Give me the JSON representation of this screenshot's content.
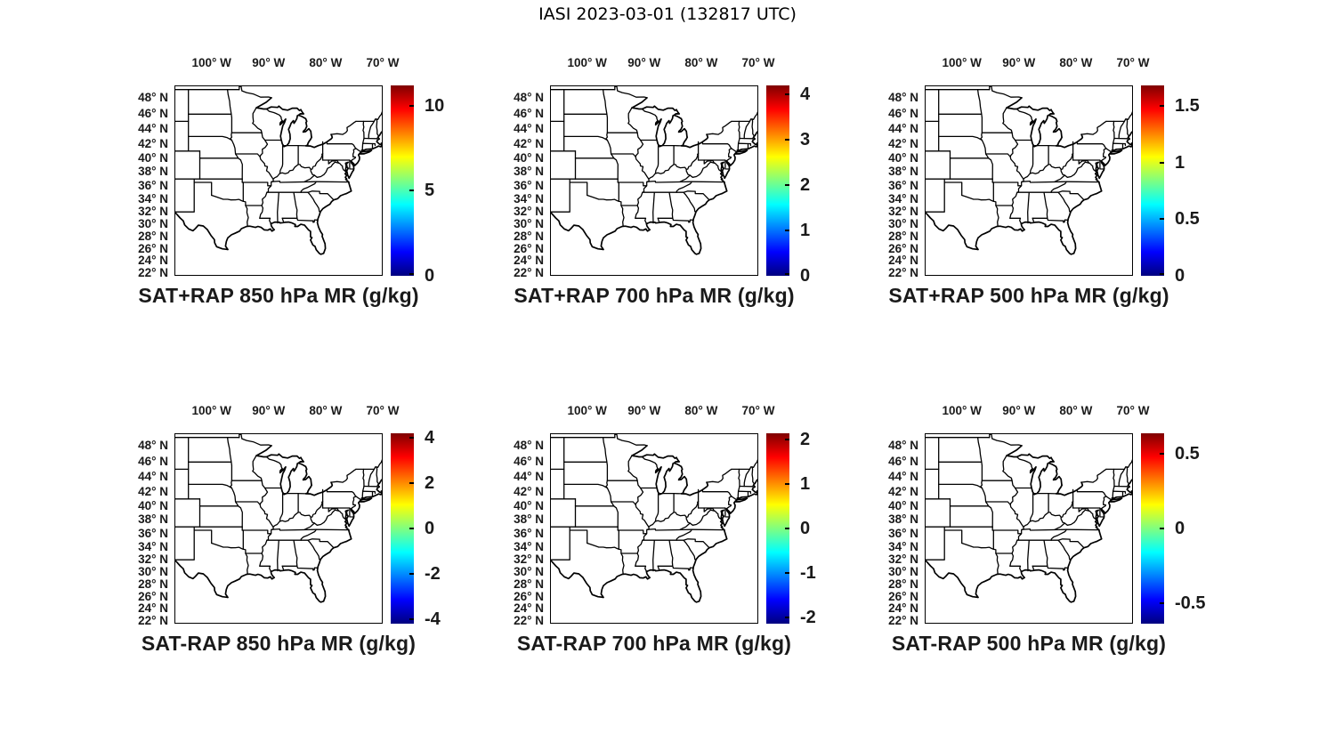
{
  "figure_title": "IASI 2023-03-01 (132817 UTC)",
  "axes": {
    "lon_tick_labels": [
      "100° W",
      "90° W",
      "80° W",
      "70° W"
    ],
    "lon_tick_values": [
      -100,
      -90,
      -80,
      -70
    ],
    "lat_tick_labels": [
      "48° N",
      "46° N",
      "44° N",
      "42° N",
      "40° N",
      "38° N",
      "36° N",
      "34° N",
      "32° N",
      "30° N",
      "28° N",
      "26° N",
      "24° N",
      "22° N"
    ],
    "lat_tick_values": [
      48,
      46,
      44,
      42,
      40,
      38,
      36,
      34,
      32,
      30,
      28,
      26,
      24,
      22
    ]
  },
  "colors": {
    "map_line": "#000000",
    "label_text": "#1a1a1a",
    "background": "#ffffff",
    "jet_stops": [
      "#7f0000",
      "#ff0000",
      "#ffff00",
      "#00ffff",
      "#0000ff",
      "#00007f"
    ]
  },
  "panels": [
    {
      "title": "SAT+RAP 850 hPa MR (g/kg)",
      "colorbar": {
        "tick_labels": [
          "0",
          "5",
          "10"
        ],
        "tick_values": [
          0,
          5,
          10
        ],
        "range": [
          0,
          11.2
        ]
      }
    },
    {
      "title": "SAT+RAP 700 hPa MR (g/kg)",
      "colorbar": {
        "tick_labels": [
          "0",
          "1",
          "2",
          "3",
          "4"
        ],
        "tick_values": [
          0,
          1,
          2,
          3,
          4
        ],
        "range": [
          0,
          4.2
        ]
      }
    },
    {
      "title": "SAT+RAP 500 hPa MR (g/kg)",
      "colorbar": {
        "tick_labels": [
          "0",
          "0.5",
          "1",
          "1.5"
        ],
        "tick_values": [
          0,
          0.5,
          1,
          1.5
        ],
        "range": [
          0,
          1.68
        ]
      }
    },
    {
      "title": "SAT-RAP 850 hPa MR (g/kg)",
      "colorbar": {
        "tick_labels": [
          "-4",
          "-2",
          "0",
          "2",
          "4"
        ],
        "tick_values": [
          -4,
          -2,
          0,
          2,
          4
        ],
        "range": [
          -4.2,
          4.2
        ]
      }
    },
    {
      "title": "SAT-RAP 700 hPa MR (g/kg)",
      "colorbar": {
        "tick_labels": [
          "-2",
          "-1",
          "0",
          "1",
          "2"
        ],
        "tick_values": [
          -2,
          -1,
          0,
          1,
          2
        ],
        "range": [
          -2.15,
          2.15
        ]
      }
    },
    {
      "title": "SAT-RAP 500 hPa MR (g/kg)",
      "colorbar": {
        "tick_labels": [
          "-0.5",
          "0",
          "0.5"
        ],
        "tick_values": [
          -0.5,
          0,
          0.5
        ],
        "range": [
          -0.64,
          0.64
        ]
      }
    }
  ],
  "chart_data": {
    "type": "heatmap",
    "subtype": "geographic-map-grid",
    "figure_title": "IASI 2023-03-01 (132817 UTC)",
    "layout": {
      "rows": 2,
      "cols": 3,
      "legend_position": "right-colorbar-per-panel",
      "grid": "off"
    },
    "projection": "Mercator",
    "map_region": "Central and Eastern United States with state boundaries",
    "lon_extent_deg_west": [
      106.5,
      70.0
    ],
    "lat_extent_deg_north": [
      21.5,
      49.5
    ],
    "lon_ticks_deg_west": [
      100,
      90,
      80,
      70
    ],
    "lat_ticks_deg_north": [
      48,
      46,
      44,
      42,
      40,
      38,
      36,
      34,
      32,
      30,
      28,
      26,
      24,
      22
    ],
    "colormap": "jet",
    "panels": [
      {
        "title": "SAT+RAP 850 hPa MR (g/kg)",
        "colorbar_ticks": [
          0,
          5,
          10
        ],
        "colorbar_range": [
          0,
          11.2
        ],
        "field_overlay": "none visible (state outlines only)"
      },
      {
        "title": "SAT+RAP 700 hPa MR (g/kg)",
        "colorbar_ticks": [
          0,
          1,
          2,
          3,
          4
        ],
        "colorbar_range": [
          0,
          4.2
        ],
        "field_overlay": "none visible (state outlines only)"
      },
      {
        "title": "SAT+RAP 500 hPa MR (g/kg)",
        "colorbar_ticks": [
          0,
          0.5,
          1,
          1.5
        ],
        "colorbar_range": [
          0,
          1.68
        ],
        "field_overlay": "none visible (state outlines only)"
      },
      {
        "title": "SAT-RAP 850 hPa MR (g/kg)",
        "colorbar_ticks": [
          -4,
          -2,
          0,
          2,
          4
        ],
        "colorbar_range": [
          -4.2,
          4.2
        ],
        "field_overlay": "none visible (state outlines only)"
      },
      {
        "title": "SAT-RAP 700 hPa MR (g/kg)",
        "colorbar_ticks": [
          -2,
          -1,
          0,
          1,
          2
        ],
        "colorbar_range": [
          -2.15,
          2.15
        ],
        "field_overlay": "none visible (state outlines only)"
      },
      {
        "title": "SAT-RAP 500 hPa MR (g/kg)",
        "colorbar_ticks": [
          -0.5,
          0,
          0.5
        ],
        "colorbar_range": [
          -0.64,
          0.64
        ],
        "field_overlay": "none visible (state outlines only)"
      }
    ]
  }
}
